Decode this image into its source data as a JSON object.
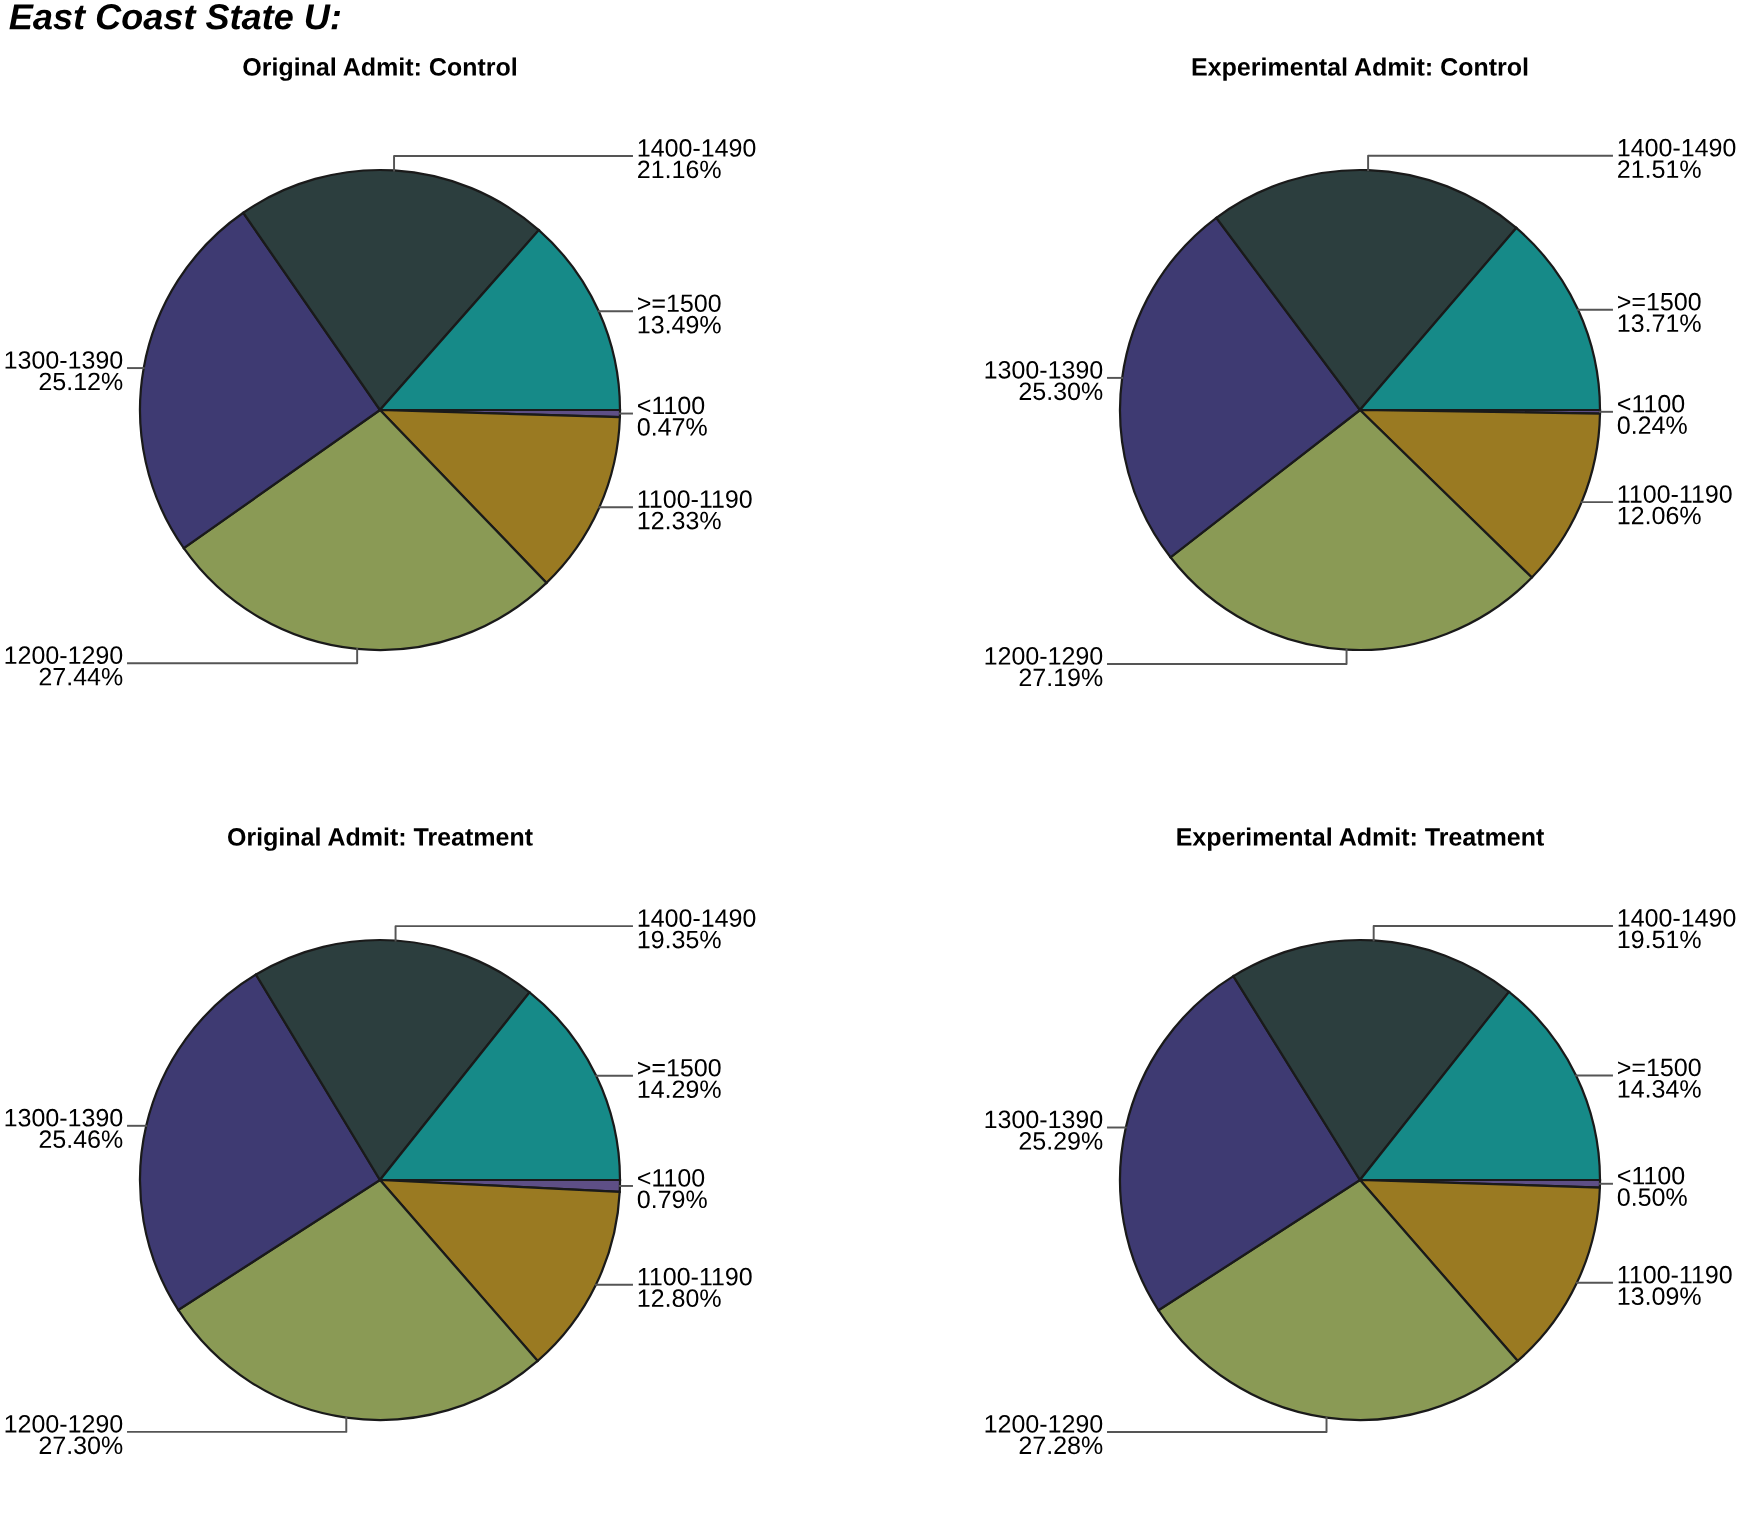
{
  "chart_data": [
    {
      "type": "pie",
      "title": "Original Admit: Control",
      "annotations": [
        "East Coast State U:"
      ],
      "categories": [
        "<1100",
        "1100-1190",
        "1200-1290",
        "1300-1390",
        "1400-1490",
        ">=1500"
      ],
      "values": [
        0.47,
        12.33,
        27.44,
        25.12,
        21.16,
        13.49
      ],
      "value_labels": [
        "0.47%",
        "12.33%",
        "27.44%",
        "25.12%",
        "21.16%",
        "13.49%"
      ],
      "colors": [
        "#5e4f86",
        "#9a7a22",
        "#8a9a55",
        "#3e3a72",
        "#2c3e3e",
        "#168a88"
      ]
    },
    {
      "type": "pie",
      "title": "Experimental Admit: Control",
      "categories": [
        "<1100",
        "1100-1190",
        "1200-1290",
        "1300-1390",
        "1400-1490",
        ">=1500"
      ],
      "values": [
        0.24,
        12.06,
        27.19,
        25.3,
        21.51,
        13.71
      ],
      "value_labels": [
        "0.24%",
        "12.06%",
        "27.19%",
        "25.30%",
        "21.51%",
        "13.71%"
      ],
      "colors": [
        "#5e4f86",
        "#9a7a22",
        "#8a9a55",
        "#3e3a72",
        "#2c3e3e",
        "#168a88"
      ]
    },
    {
      "type": "pie",
      "title": "Original Admit: Treatment",
      "categories": [
        "<1100",
        "1100-1190",
        "1200-1290",
        "1300-1390",
        "1400-1490",
        ">=1500"
      ],
      "values": [
        0.79,
        12.8,
        27.3,
        25.46,
        19.35,
        14.29
      ],
      "value_labels": [
        "0.79%",
        "12.80%",
        "27.30%",
        "25.46%",
        "19.35%",
        "14.29%"
      ],
      "colors": [
        "#5e4f86",
        "#9a7a22",
        "#8a9a55",
        "#3e3a72",
        "#2c3e3e",
        "#168a88"
      ]
    },
    {
      "type": "pie",
      "title": "Experimental Admit: Treatment",
      "categories": [
        "<1100",
        "1100-1190",
        "1200-1290",
        "1300-1390",
        "1400-1490",
        ">=1500"
      ],
      "values": [
        0.5,
        13.09,
        27.28,
        25.29,
        19.51,
        14.34
      ],
      "value_labels": [
        "0.50%",
        "13.09%",
        "27.28%",
        "25.29%",
        "19.51%",
        "14.34%"
      ],
      "colors": [
        "#5e4f86",
        "#9a7a22",
        "#8a9a55",
        "#3e3a72",
        "#2c3e3e",
        "#168a88"
      ]
    }
  ]
}
